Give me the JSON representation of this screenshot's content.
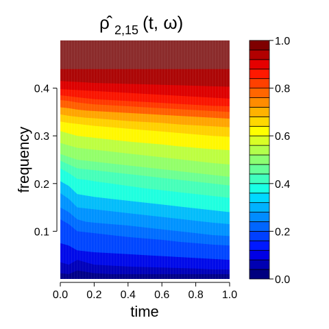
{
  "chart_data": {
    "type": "heatmap",
    "subtype": "filled-contour",
    "title": {
      "main": "ρ̂",
      "subscript": "2,15",
      "suffix": "(t, ω)"
    },
    "xlabel": "time",
    "ylabel": "frequency",
    "xlim": [
      0.0,
      1.0
    ],
    "ylim": [
      0.0,
      0.5
    ],
    "x_ticks": [
      "0.0",
      "0.2",
      "0.4",
      "0.6",
      "0.8",
      "1.0"
    ],
    "x_tick_values": [
      0.0,
      0.2,
      0.4,
      0.6,
      0.8,
      1.0
    ],
    "y_ticks": [
      "0.1",
      "0.2",
      "0.3",
      "0.4"
    ],
    "y_tick_values": [
      0.1,
      0.2,
      0.3,
      0.4
    ],
    "colorbar": {
      "range": [
        0.0,
        1.0
      ],
      "tick_labels": [
        "0.0",
        "0.2",
        "0.4",
        "0.6",
        "0.8",
        "1.0"
      ],
      "tick_values": [
        0.0,
        0.2,
        0.4,
        0.6,
        0.8,
        1.0
      ],
      "levels": [
        0.0,
        0.05,
        0.1,
        0.15,
        0.2,
        0.25,
        0.3,
        0.35,
        0.4,
        0.45,
        0.5,
        0.55,
        0.6,
        0.65,
        0.7,
        0.75,
        0.8,
        0.85,
        0.9,
        0.95,
        1.0
      ],
      "colors": [
        "#00007f",
        "#0000b2",
        "#0000e5",
        "#0019ff",
        "#0040ff",
        "#0066ff",
        "#008cff",
        "#00b2ff",
        "#00d8ff",
        "#19ffe5",
        "#40ffbf",
        "#66ff99",
        "#8cff72",
        "#b2ff4c",
        "#d8ff26",
        "#ffff00",
        "#ffd800",
        "#ffb200",
        "#ff8c00",
        "#ff6600",
        "#ff4000",
        "#ff1900",
        "#e50000",
        "#b20000",
        "#7f0000"
      ]
    },
    "x": [
      0.0,
      0.05,
      0.1,
      0.15,
      0.2,
      0.3,
      0.4,
      0.5,
      0.6,
      0.7,
      0.8,
      0.9,
      1.0
    ],
    "contours": [
      {
        "level": 0.05,
        "y": [
          0.012,
          0.01,
          0.018,
          0.015,
          0.012,
          0.01,
          0.01,
          0.01,
          0.01,
          0.01,
          0.01,
          0.01,
          0.01
        ]
      },
      {
        "level": 0.1,
        "y": [
          0.035,
          0.03,
          0.04,
          0.035,
          0.03,
          0.028,
          0.026,
          0.025,
          0.024,
          0.023,
          0.022,
          0.02,
          0.02
        ]
      },
      {
        "level": 0.15,
        "y": [
          0.075,
          0.07,
          0.06,
          0.058,
          0.056,
          0.054,
          0.052,
          0.05,
          0.048,
          0.046,
          0.044,
          0.042,
          0.04
        ]
      },
      {
        "level": 0.2,
        "y": [
          0.125,
          0.115,
          0.1,
          0.098,
          0.096,
          0.092,
          0.088,
          0.085,
          0.082,
          0.078,
          0.075,
          0.072,
          0.07
        ]
      },
      {
        "level": 0.25,
        "y": [
          0.15,
          0.14,
          0.125,
          0.12,
          0.118,
          0.115,
          0.112,
          0.108,
          0.104,
          0.1,
          0.096,
          0.092,
          0.09
        ]
      },
      {
        "level": 0.3,
        "y": [
          0.18,
          0.168,
          0.15,
          0.148,
          0.146,
          0.142,
          0.138,
          0.134,
          0.13,
          0.126,
          0.122,
          0.118,
          0.115
        ]
      },
      {
        "level": 0.35,
        "y": [
          0.205,
          0.195,
          0.178,
          0.175,
          0.172,
          0.168,
          0.164,
          0.16,
          0.156,
          0.152,
          0.148,
          0.144,
          0.14
        ]
      },
      {
        "level": 0.4,
        "y": [
          0.232,
          0.222,
          0.21,
          0.208,
          0.205,
          0.2,
          0.195,
          0.19,
          0.186,
          0.182,
          0.178,
          0.174,
          0.17
        ]
      },
      {
        "level": 0.45,
        "y": [
          0.248,
          0.24,
          0.232,
          0.23,
          0.228,
          0.224,
          0.22,
          0.216,
          0.212,
          0.208,
          0.204,
          0.2,
          0.196
        ]
      },
      {
        "level": 0.5,
        "y": [
          0.262,
          0.256,
          0.25,
          0.248,
          0.246,
          0.242,
          0.238,
          0.234,
          0.23,
          0.226,
          0.222,
          0.218,
          0.214
        ]
      },
      {
        "level": 0.55,
        "y": [
          0.285,
          0.28,
          0.275,
          0.273,
          0.271,
          0.267,
          0.263,
          0.259,
          0.255,
          0.251,
          0.247,
          0.243,
          0.24
        ]
      },
      {
        "level": 0.6,
        "y": [
          0.31,
          0.305,
          0.3,
          0.298,
          0.296,
          0.292,
          0.288,
          0.285,
          0.282,
          0.278,
          0.275,
          0.272,
          0.27
        ]
      },
      {
        "level": 0.65,
        "y": [
          0.33,
          0.327,
          0.325,
          0.323,
          0.321,
          0.318,
          0.315,
          0.312,
          0.309,
          0.306,
          0.303,
          0.3,
          0.298
        ]
      },
      {
        "level": 0.7,
        "y": [
          0.345,
          0.342,
          0.34,
          0.338,
          0.337,
          0.334,
          0.331,
          0.329,
          0.327,
          0.324,
          0.322,
          0.32,
          0.318
        ]
      },
      {
        "level": 0.75,
        "y": [
          0.36,
          0.358,
          0.355,
          0.353,
          0.352,
          0.35,
          0.348,
          0.346,
          0.344,
          0.342,
          0.34,
          0.338,
          0.336
        ]
      },
      {
        "level": 0.8,
        "y": [
          0.375,
          0.373,
          0.37,
          0.368,
          0.366,
          0.364,
          0.362,
          0.36,
          0.358,
          0.356,
          0.354,
          0.352,
          0.35
        ]
      },
      {
        "level": 0.85,
        "y": [
          0.385,
          0.383,
          0.381,
          0.379,
          0.377,
          0.375,
          0.373,
          0.371,
          0.369,
          0.367,
          0.365,
          0.363,
          0.362
        ]
      },
      {
        "level": 0.9,
        "y": [
          0.398,
          0.397,
          0.396,
          0.395,
          0.394,
          0.392,
          0.39,
          0.388,
          0.386,
          0.384,
          0.382,
          0.38,
          0.378
        ]
      },
      {
        "level": 0.95,
        "y": [
          0.415,
          0.414,
          0.413,
          0.412,
          0.411,
          0.41,
          0.409,
          0.408,
          0.407,
          0.406,
          0.405,
          0.404,
          0.403
        ]
      },
      {
        "level": 0.975,
        "y": [
          0.44,
          0.44,
          0.44,
          0.44,
          0.44,
          0.44,
          0.44,
          0.44,
          0.44,
          0.44,
          0.44,
          0.44,
          0.44
        ]
      }
    ]
  }
}
